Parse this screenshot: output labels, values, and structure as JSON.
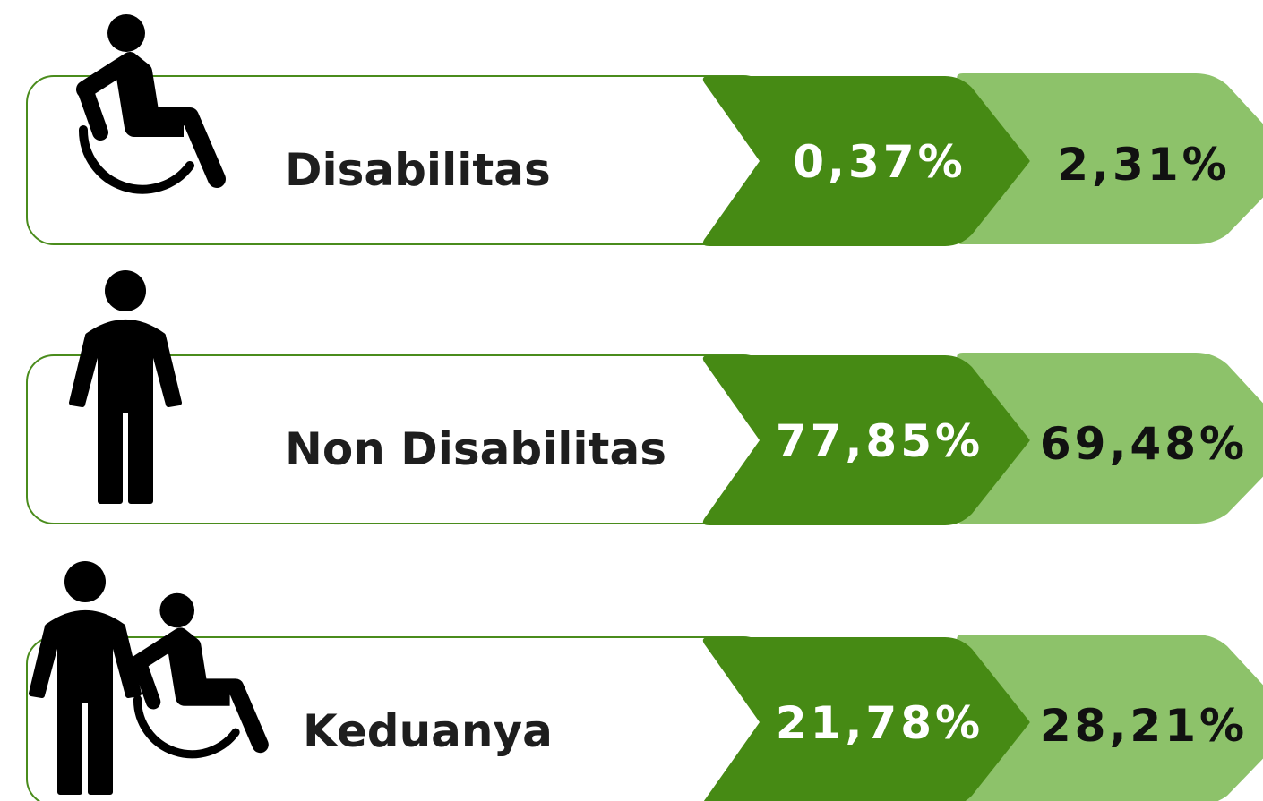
{
  "rows": [
    {
      "label": "Disabilitas",
      "value_1": "0,37%",
      "value_2": "2,31%"
    },
    {
      "label": "Non Disabilitas",
      "value_1": "77,85%",
      "value_2": "69,48%"
    },
    {
      "label": "Keduanya",
      "value_1": "21,78%",
      "value_2": "28,21%"
    }
  ]
}
